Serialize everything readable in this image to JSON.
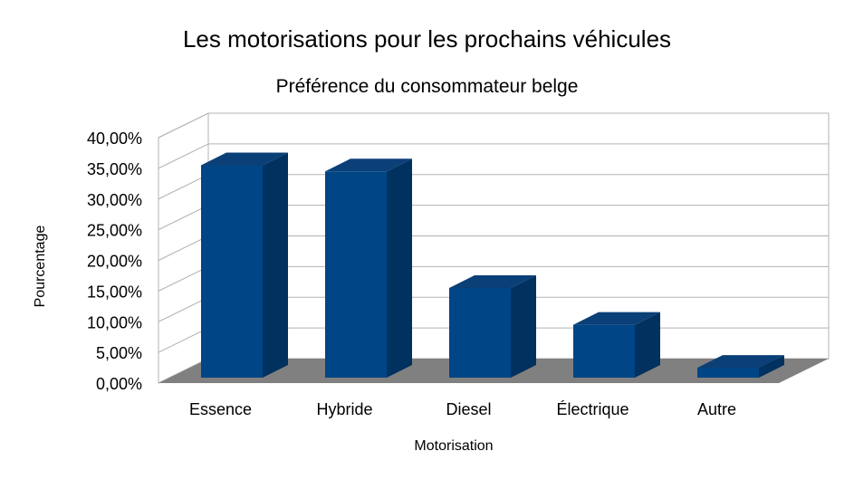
{
  "chart_data": {
    "type": "bar",
    "title": "Les motorisations pour les prochains véhicules",
    "subtitle": "Préférence du consommateur belge",
    "xlabel": "Motorisation",
    "ylabel": "Pourcentage",
    "categories": [
      "Essence",
      "Hybride",
      "Diesel",
      "Électrique",
      "Autre"
    ],
    "values": [
      35.5,
      34.5,
      15.5,
      9.5,
      2.5
    ],
    "ylim": [
      0,
      40
    ],
    "yticks": [
      "0,00%",
      "5,00%",
      "10,00%",
      "15,00%",
      "20,00%",
      "25,00%",
      "30,00%",
      "35,00%",
      "40,00%"
    ],
    "grid": true,
    "legend": "none",
    "colors": {
      "bar_front": "#004586",
      "bar_side": "#00315f",
      "bar_top": "#0b3f77",
      "floor": "#808080",
      "grid": "#b3b3b3"
    }
  }
}
